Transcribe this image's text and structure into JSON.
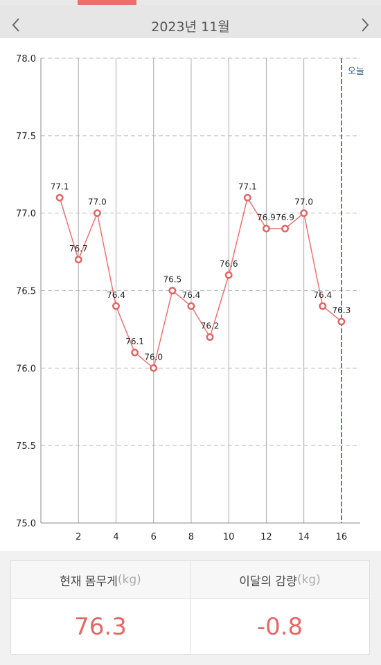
{
  "header": {
    "title": "2023년 11월",
    "prev_icon": "chevron-left-icon",
    "next_icon": "chevron-right-icon"
  },
  "chart_data": {
    "type": "line",
    "x": [
      1,
      2,
      3,
      4,
      5,
      6,
      7,
      8,
      9,
      10,
      11,
      12,
      13,
      14,
      15,
      16
    ],
    "series": [
      {
        "values": [
          77.1,
          76.7,
          77.0,
          76.4,
          76.1,
          76.0,
          76.5,
          76.4,
          76.2,
          76.6,
          77.1,
          76.9,
          76.9,
          77.0,
          76.4,
          76.3
        ]
      }
    ],
    "data_labels": [
      "77.1",
      "76.7",
      "77.0",
      "76.4",
      "76.1",
      "76.0",
      "76.5",
      "76.4",
      "76.2",
      "76.6",
      "77.1",
      "76.9",
      "76.9",
      "77.0",
      "76.4",
      "76.3"
    ],
    "xticks": [
      2,
      4,
      6,
      8,
      10,
      12,
      14,
      16
    ],
    "yticks": [
      "75.0",
      "75.5",
      "76.0",
      "76.5",
      "77.0",
      "77.5",
      "78.0"
    ],
    "xlim": [
      0,
      17
    ],
    "ylim": [
      75.0,
      78.0
    ],
    "today_x": 16,
    "today_label": "오늘",
    "grid": true,
    "colors": {
      "line": "#e87272",
      "point_stroke": "#e36464",
      "today_line": "#2e5f8a",
      "vgrid": "#aaaaaa",
      "hgrid": "#bbbbbb"
    }
  },
  "stats": {
    "current_label": "현재 몸무게",
    "current_unit": "(kg)",
    "current_value": "76.3",
    "change_label": "이달의 감량",
    "change_unit": "(kg)",
    "change_value": "-0.8"
  }
}
